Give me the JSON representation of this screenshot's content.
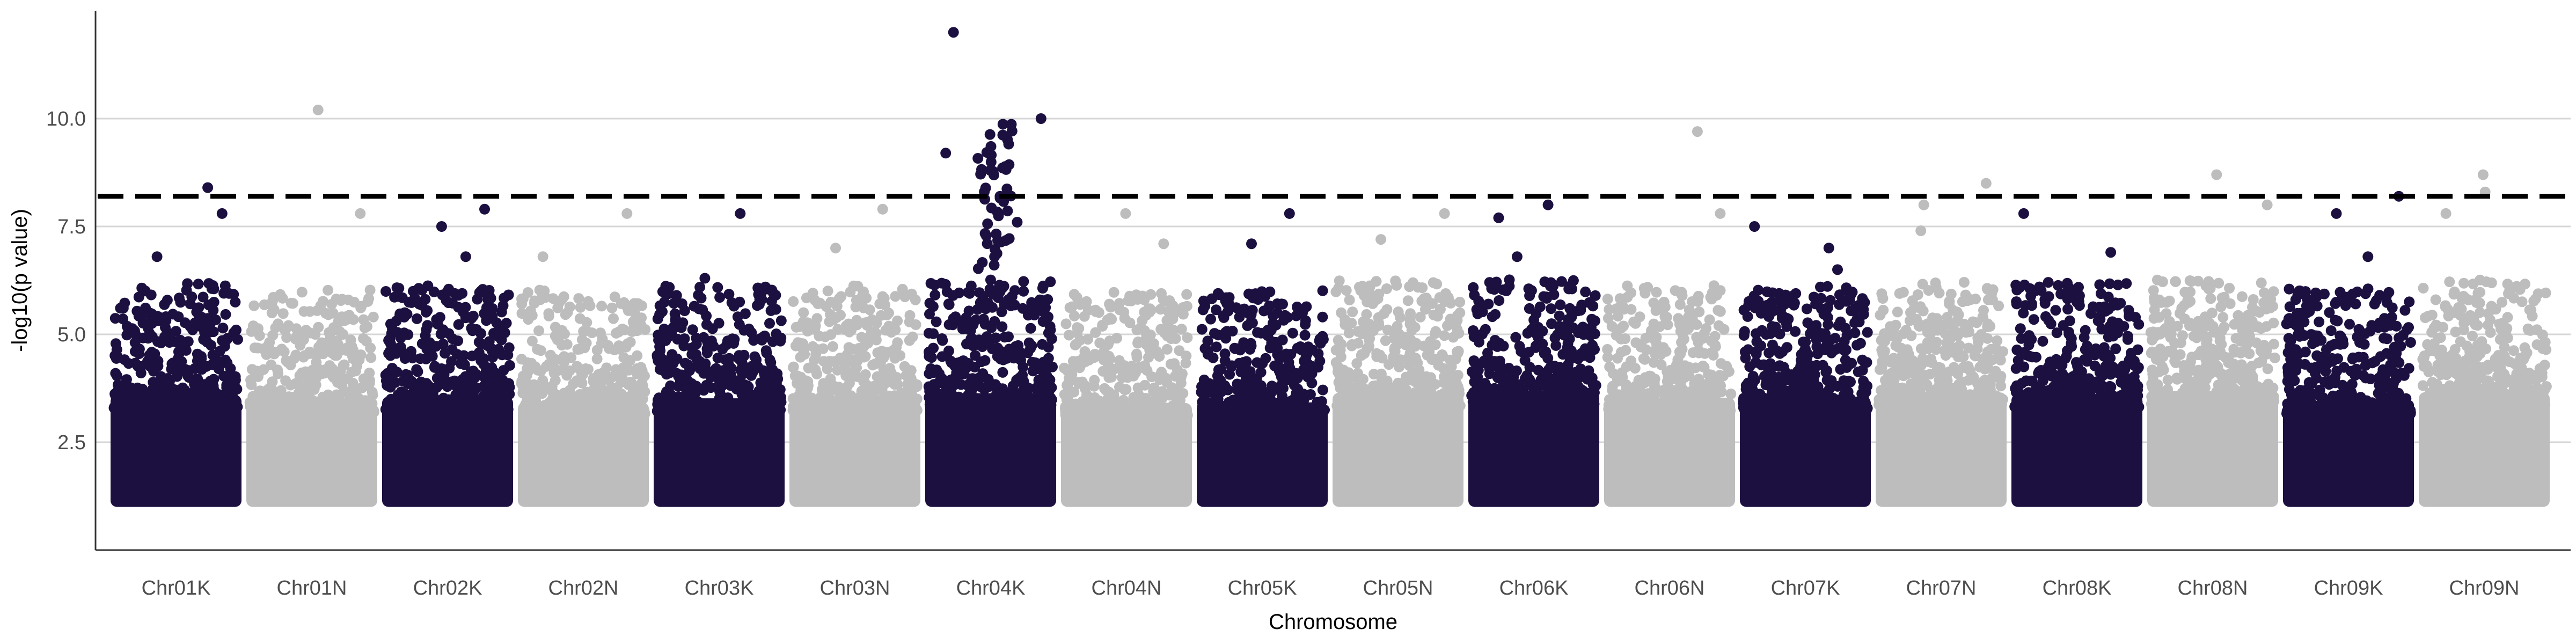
{
  "chart_data": {
    "type": "scatter",
    "subtype": "manhattan",
    "xlabel": "Chromosome",
    "ylabel": "-log10(p value)",
    "categories": [
      "Chr01K",
      "Chr01N",
      "Chr02K",
      "Chr02N",
      "Chr03K",
      "Chr03N",
      "Chr04K",
      "Chr04N",
      "Chr05K",
      "Chr05N",
      "Chr06K",
      "Chr06N",
      "Chr07K",
      "Chr07N",
      "Chr08K",
      "Chr08N",
      "Chr09K",
      "Chr09N"
    ],
    "ylim": [
      0,
      12.5
    ],
    "yticks": [
      2.5,
      5.0,
      7.5,
      10.0
    ],
    "ytick_labels": [
      "2.5",
      "5.0",
      "7.5",
      "10.0"
    ],
    "threshold": 8.2,
    "threshold_style": "dashed",
    "grid": "horizontal major",
    "legend": "none",
    "colors": {
      "K": "#1c1040",
      "N": "#bdbdbd",
      "threshold": "#000000"
    },
    "point_floor": 1.0,
    "notable_points": [
      {
        "chr": "Chr01K",
        "y": 8.4
      },
      {
        "chr": "Chr01K",
        "y": 7.8
      },
      {
        "chr": "Chr01K",
        "y": 6.8
      },
      {
        "chr": "Chr01N",
        "y": 10.2
      },
      {
        "chr": "Chr01N",
        "y": 7.8
      },
      {
        "chr": "Chr02K",
        "y": 7.9
      },
      {
        "chr": "Chr02K",
        "y": 7.5
      },
      {
        "chr": "Chr02K",
        "y": 6.8
      },
      {
        "chr": "Chr02N",
        "y": 7.8
      },
      {
        "chr": "Chr02N",
        "y": 6.8
      },
      {
        "chr": "Chr03K",
        "y": 7.8
      },
      {
        "chr": "Chr03K",
        "y": 6.3
      },
      {
        "chr": "Chr03N",
        "y": 7.9
      },
      {
        "chr": "Chr03N",
        "y": 7.0
      },
      {
        "chr": "Chr04K",
        "y": 12.0
      },
      {
        "chr": "Chr04K",
        "y": 10.0
      },
      {
        "chr": "Chr04K",
        "y": 9.2
      },
      {
        "chr": "Chr04K",
        "y": 8.8
      },
      {
        "chr": "Chr04K",
        "y": 8.2
      },
      {
        "chr": "Chr04K",
        "y": 7.6
      },
      {
        "chr": "Chr04K",
        "y": 6.8
      },
      {
        "chr": "Chr04N",
        "y": 7.8
      },
      {
        "chr": "Chr04N",
        "y": 7.1
      },
      {
        "chr": "Chr05K",
        "y": 7.8
      },
      {
        "chr": "Chr05K",
        "y": 7.1
      },
      {
        "chr": "Chr05N",
        "y": 7.8
      },
      {
        "chr": "Chr05N",
        "y": 7.2
      },
      {
        "chr": "Chr06K",
        "y": 8.0
      },
      {
        "chr": "Chr06K",
        "y": 7.7
      },
      {
        "chr": "Chr06K",
        "y": 6.8
      },
      {
        "chr": "Chr06N",
        "y": 9.7
      },
      {
        "chr": "Chr06N",
        "y": 7.8
      },
      {
        "chr": "Chr07K",
        "y": 7.5
      },
      {
        "chr": "Chr07K",
        "y": 7.0
      },
      {
        "chr": "Chr07K",
        "y": 6.5
      },
      {
        "chr": "Chr07N",
        "y": 8.5
      },
      {
        "chr": "Chr07N",
        "y": 8.0
      },
      {
        "chr": "Chr07N",
        "y": 7.4
      },
      {
        "chr": "Chr08K",
        "y": 7.8
      },
      {
        "chr": "Chr08K",
        "y": 6.9
      },
      {
        "chr": "Chr08N",
        "y": 8.7
      },
      {
        "chr": "Chr08N",
        "y": 8.0
      },
      {
        "chr": "Chr09K",
        "y": 8.2
      },
      {
        "chr": "Chr09K",
        "y": 7.8
      },
      {
        "chr": "Chr09K",
        "y": 6.8
      },
      {
        "chr": "Chr09N",
        "y": 8.7
      },
      {
        "chr": "Chr09N",
        "y": 8.3
      },
      {
        "chr": "Chr09N",
        "y": 7.8
      }
    ]
  }
}
